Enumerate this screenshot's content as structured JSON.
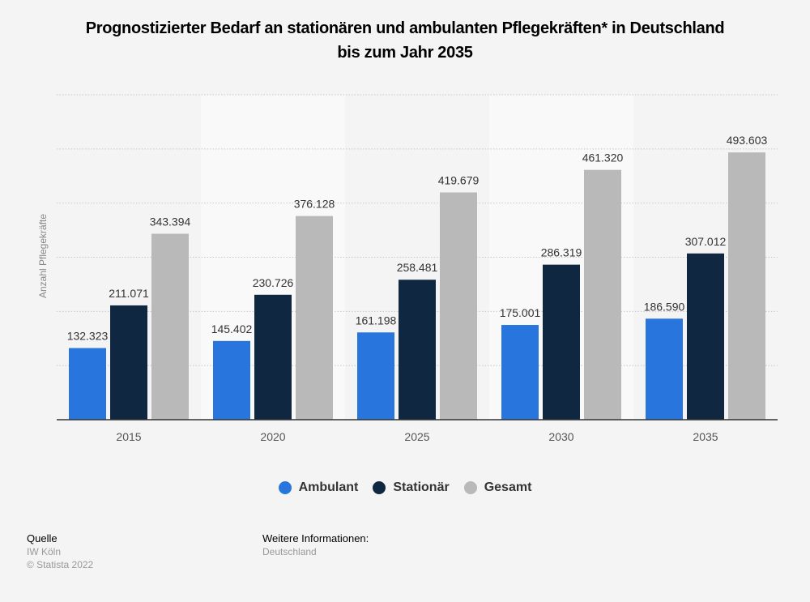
{
  "chart_data": {
    "type": "bar",
    "title": "Prognostizierter Bedarf an stationären und ambulanten Pflegekräften* in Deutschland bis zum Jahr 2035",
    "title_lines": [
      "Prognostizierter Bedarf an stationären und ambulanten Pflegekräften* in Deutschland",
      "bis zum Jahr 2035"
    ],
    "xlabel": "",
    "ylabel": "Anzahl Pflegekräfte",
    "categories": [
      "2015",
      "2020",
      "2025",
      "2030",
      "2035"
    ],
    "series": [
      {
        "name": "Ambulant",
        "color": "#2876dd",
        "values": [
          132323,
          145402,
          161198,
          175001,
          186590
        ],
        "labels": [
          "132.323",
          "145.402",
          "161.198",
          "175.001",
          "186.590"
        ]
      },
      {
        "name": "Stationär",
        "color": "#0f2740",
        "values": [
          211071,
          230726,
          258481,
          286319,
          307012
        ],
        "labels": [
          "211.071",
          "230.726",
          "258.481",
          "286.319",
          "307.012"
        ]
      },
      {
        "name": "Gesamt",
        "color": "#b9b9b9",
        "values": [
          343394,
          376128,
          419679,
          461320,
          493603
        ],
        "labels": [
          "343.394",
          "376.128",
          "419.679",
          "461.320",
          "493.603"
        ]
      }
    ],
    "ylim": [
      0,
      600000
    ],
    "ytick_step": 100000,
    "ytick_labels_visible": false,
    "grid": true,
    "legend_position": "bottom"
  },
  "footer": {
    "source_heading": "Quelle",
    "source": "IW Köln",
    "copyright": "© Statista 2022",
    "info_heading": "Weitere Informationen:",
    "info": "Deutschland"
  }
}
